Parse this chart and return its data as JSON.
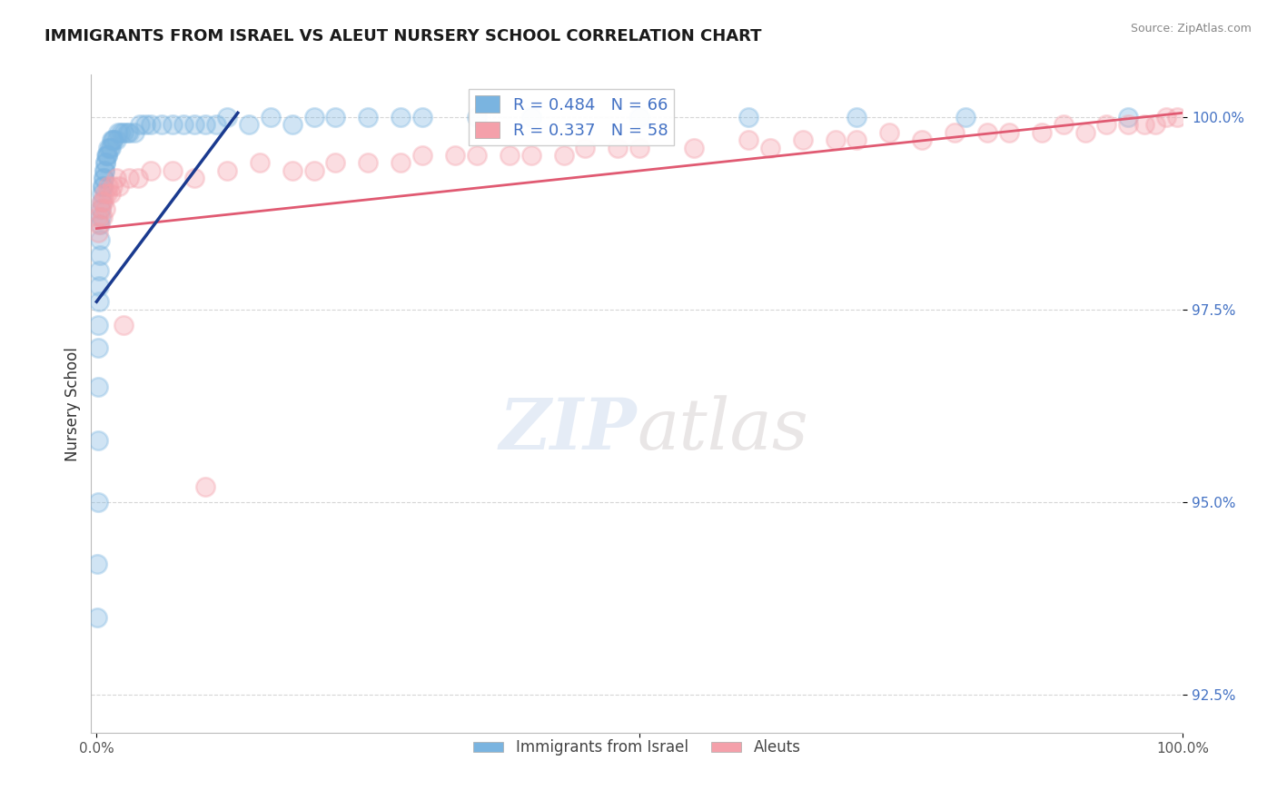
{
  "title": "IMMIGRANTS FROM ISRAEL VS ALEUT NURSERY SCHOOL CORRELATION CHART",
  "source": "Source: ZipAtlas.com",
  "ylabel": "Nursery School",
  "y_ticks": [
    92.5,
    95.0,
    97.5,
    100.0
  ],
  "y_tick_labels": [
    "92.5%",
    "95.0%",
    "97.5%",
    "100.0%"
  ],
  "legend_label1": "Immigrants from Israel",
  "legend_label2": "Aleuts",
  "r1": 0.484,
  "n1": 66,
  "r2": 0.337,
  "n2": 58,
  "blue_color": "#7ab4e0",
  "pink_color": "#f4a0aa",
  "blue_line_color": "#1a3a8f",
  "pink_line_color": "#e05a72",
  "watermark_zip": "ZIP",
  "watermark_atlas": "atlas",
  "blue_x": [
    0.05,
    0.08,
    0.1,
    0.12,
    0.14,
    0.16,
    0.18,
    0.2,
    0.22,
    0.25,
    0.28,
    0.3,
    0.33,
    0.36,
    0.4,
    0.44,
    0.48,
    0.52,
    0.56,
    0.6,
    0.65,
    0.7,
    0.75,
    0.8,
    0.85,
    0.9,
    0.95,
    1.0,
    1.1,
    1.2,
    1.3,
    1.4,
    1.5,
    1.6,
    1.8,
    2.0,
    2.2,
    2.5,
    2.8,
    3.0,
    3.5,
    4.0,
    4.5,
    5.0,
    6.0,
    7.0,
    8.0,
    9.0,
    10.0,
    11.0,
    12.0,
    14.0,
    16.0,
    18.0,
    20.0,
    22.0,
    25.0,
    28.0,
    30.0,
    35.0,
    40.0,
    50.0,
    60.0,
    70.0,
    80.0,
    95.0
  ],
  "blue_y": [
    93.5,
    94.2,
    95.0,
    95.8,
    96.5,
    97.0,
    97.3,
    97.6,
    97.8,
    98.0,
    98.2,
    98.4,
    98.6,
    98.7,
    98.8,
    98.9,
    99.0,
    99.1,
    99.1,
    99.2,
    99.2,
    99.3,
    99.3,
    99.4,
    99.4,
    99.5,
    99.5,
    99.5,
    99.6,
    99.6,
    99.6,
    99.7,
    99.7,
    99.7,
    99.7,
    99.8,
    99.8,
    99.8,
    99.8,
    99.8,
    99.8,
    99.9,
    99.9,
    99.9,
    99.9,
    99.9,
    99.9,
    99.9,
    99.9,
    99.9,
    100.0,
    99.9,
    100.0,
    99.9,
    100.0,
    100.0,
    100.0,
    100.0,
    100.0,
    100.0,
    100.0,
    100.0,
    100.0,
    100.0,
    100.0,
    100.0
  ],
  "pink_x": [
    0.1,
    0.18,
    0.25,
    0.35,
    0.45,
    0.55,
    0.65,
    0.75,
    0.85,
    0.95,
    1.1,
    1.3,
    1.5,
    1.8,
    2.1,
    2.5,
    3.0,
    3.8,
    5.0,
    7.0,
    9.0,
    12.0,
    15.0,
    20.0,
    25.0,
    30.0,
    35.0,
    40.0,
    45.0,
    50.0,
    55.0,
    60.0,
    62.0,
    65.0,
    68.0,
    70.0,
    73.0,
    76.0,
    79.0,
    82.0,
    84.0,
    87.0,
    89.0,
    91.0,
    93.0,
    95.0,
    96.5,
    97.5,
    98.5,
    99.5,
    10.0,
    18.0,
    22.0,
    28.0,
    33.0,
    38.0,
    43.0,
    48.0
  ],
  "pink_y": [
    98.5,
    98.7,
    98.6,
    98.8,
    98.9,
    98.7,
    98.9,
    99.0,
    98.8,
    99.0,
    99.1,
    99.0,
    99.1,
    99.2,
    99.1,
    97.3,
    99.2,
    99.2,
    99.3,
    99.3,
    99.2,
    99.3,
    99.4,
    99.3,
    99.4,
    99.5,
    99.5,
    99.5,
    99.6,
    99.6,
    99.6,
    99.7,
    99.6,
    99.7,
    99.7,
    99.7,
    99.8,
    99.7,
    99.8,
    99.8,
    99.8,
    99.8,
    99.9,
    99.8,
    99.9,
    99.9,
    99.9,
    99.9,
    100.0,
    100.0,
    95.2,
    99.3,
    99.4,
    99.4,
    99.5,
    99.5,
    99.5,
    99.6
  ]
}
